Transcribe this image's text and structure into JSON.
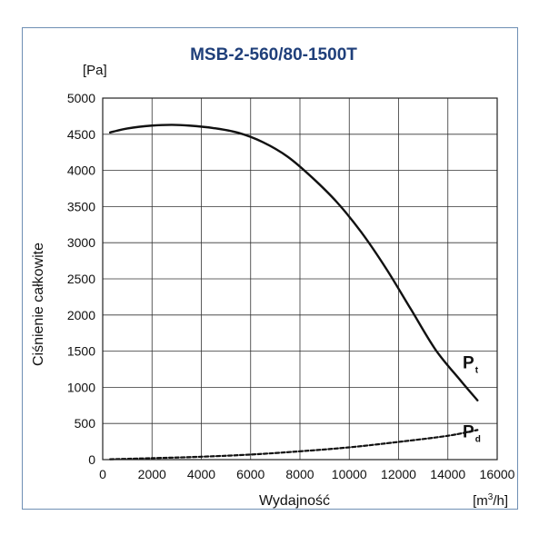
{
  "chart_data": {
    "type": "line",
    "title": "MSB-2-560/80-1500T",
    "xlabel": "Wydajność",
    "ylabel": "Ciśnienie całkowite",
    "x_unit": {
      "pre": "[m",
      "sup": "3",
      "post": "/h]"
    },
    "y_unit": "[Pa]",
    "xlim": [
      0,
      16000
    ],
    "ylim": [
      0,
      5000
    ],
    "x_ticks": [
      0,
      2000,
      4000,
      6000,
      8000,
      10000,
      12000,
      14000,
      16000
    ],
    "y_ticks": [
      0,
      500,
      1000,
      1500,
      2000,
      2500,
      3000,
      3500,
      4000,
      4500,
      5000
    ],
    "grid": true,
    "series": [
      {
        "name": "Pt",
        "label_main": "P",
        "label_sub": "t",
        "style": "solid",
        "color": "#111111",
        "x": [
          300,
          1000,
          2000,
          2800,
          3500,
          4500,
          5500,
          6500,
          7500,
          8500,
          9500,
          10500,
          11500,
          12500,
          13500,
          14500,
          15200
        ],
        "y": [
          4525,
          4580,
          4620,
          4630,
          4620,
          4585,
          4520,
          4390,
          4190,
          3900,
          3560,
          3140,
          2640,
          2080,
          1520,
          1100,
          820
        ]
      },
      {
        "name": "Pd",
        "label_main": "P",
        "label_sub": "d",
        "style": "dashed",
        "color": "#111111",
        "x": [
          300,
          2000,
          4000,
          6000,
          8000,
          10000,
          12000,
          14000,
          15200
        ],
        "y": [
          5,
          20,
          40,
          70,
          115,
          170,
          245,
          330,
          410
        ]
      }
    ]
  }
}
